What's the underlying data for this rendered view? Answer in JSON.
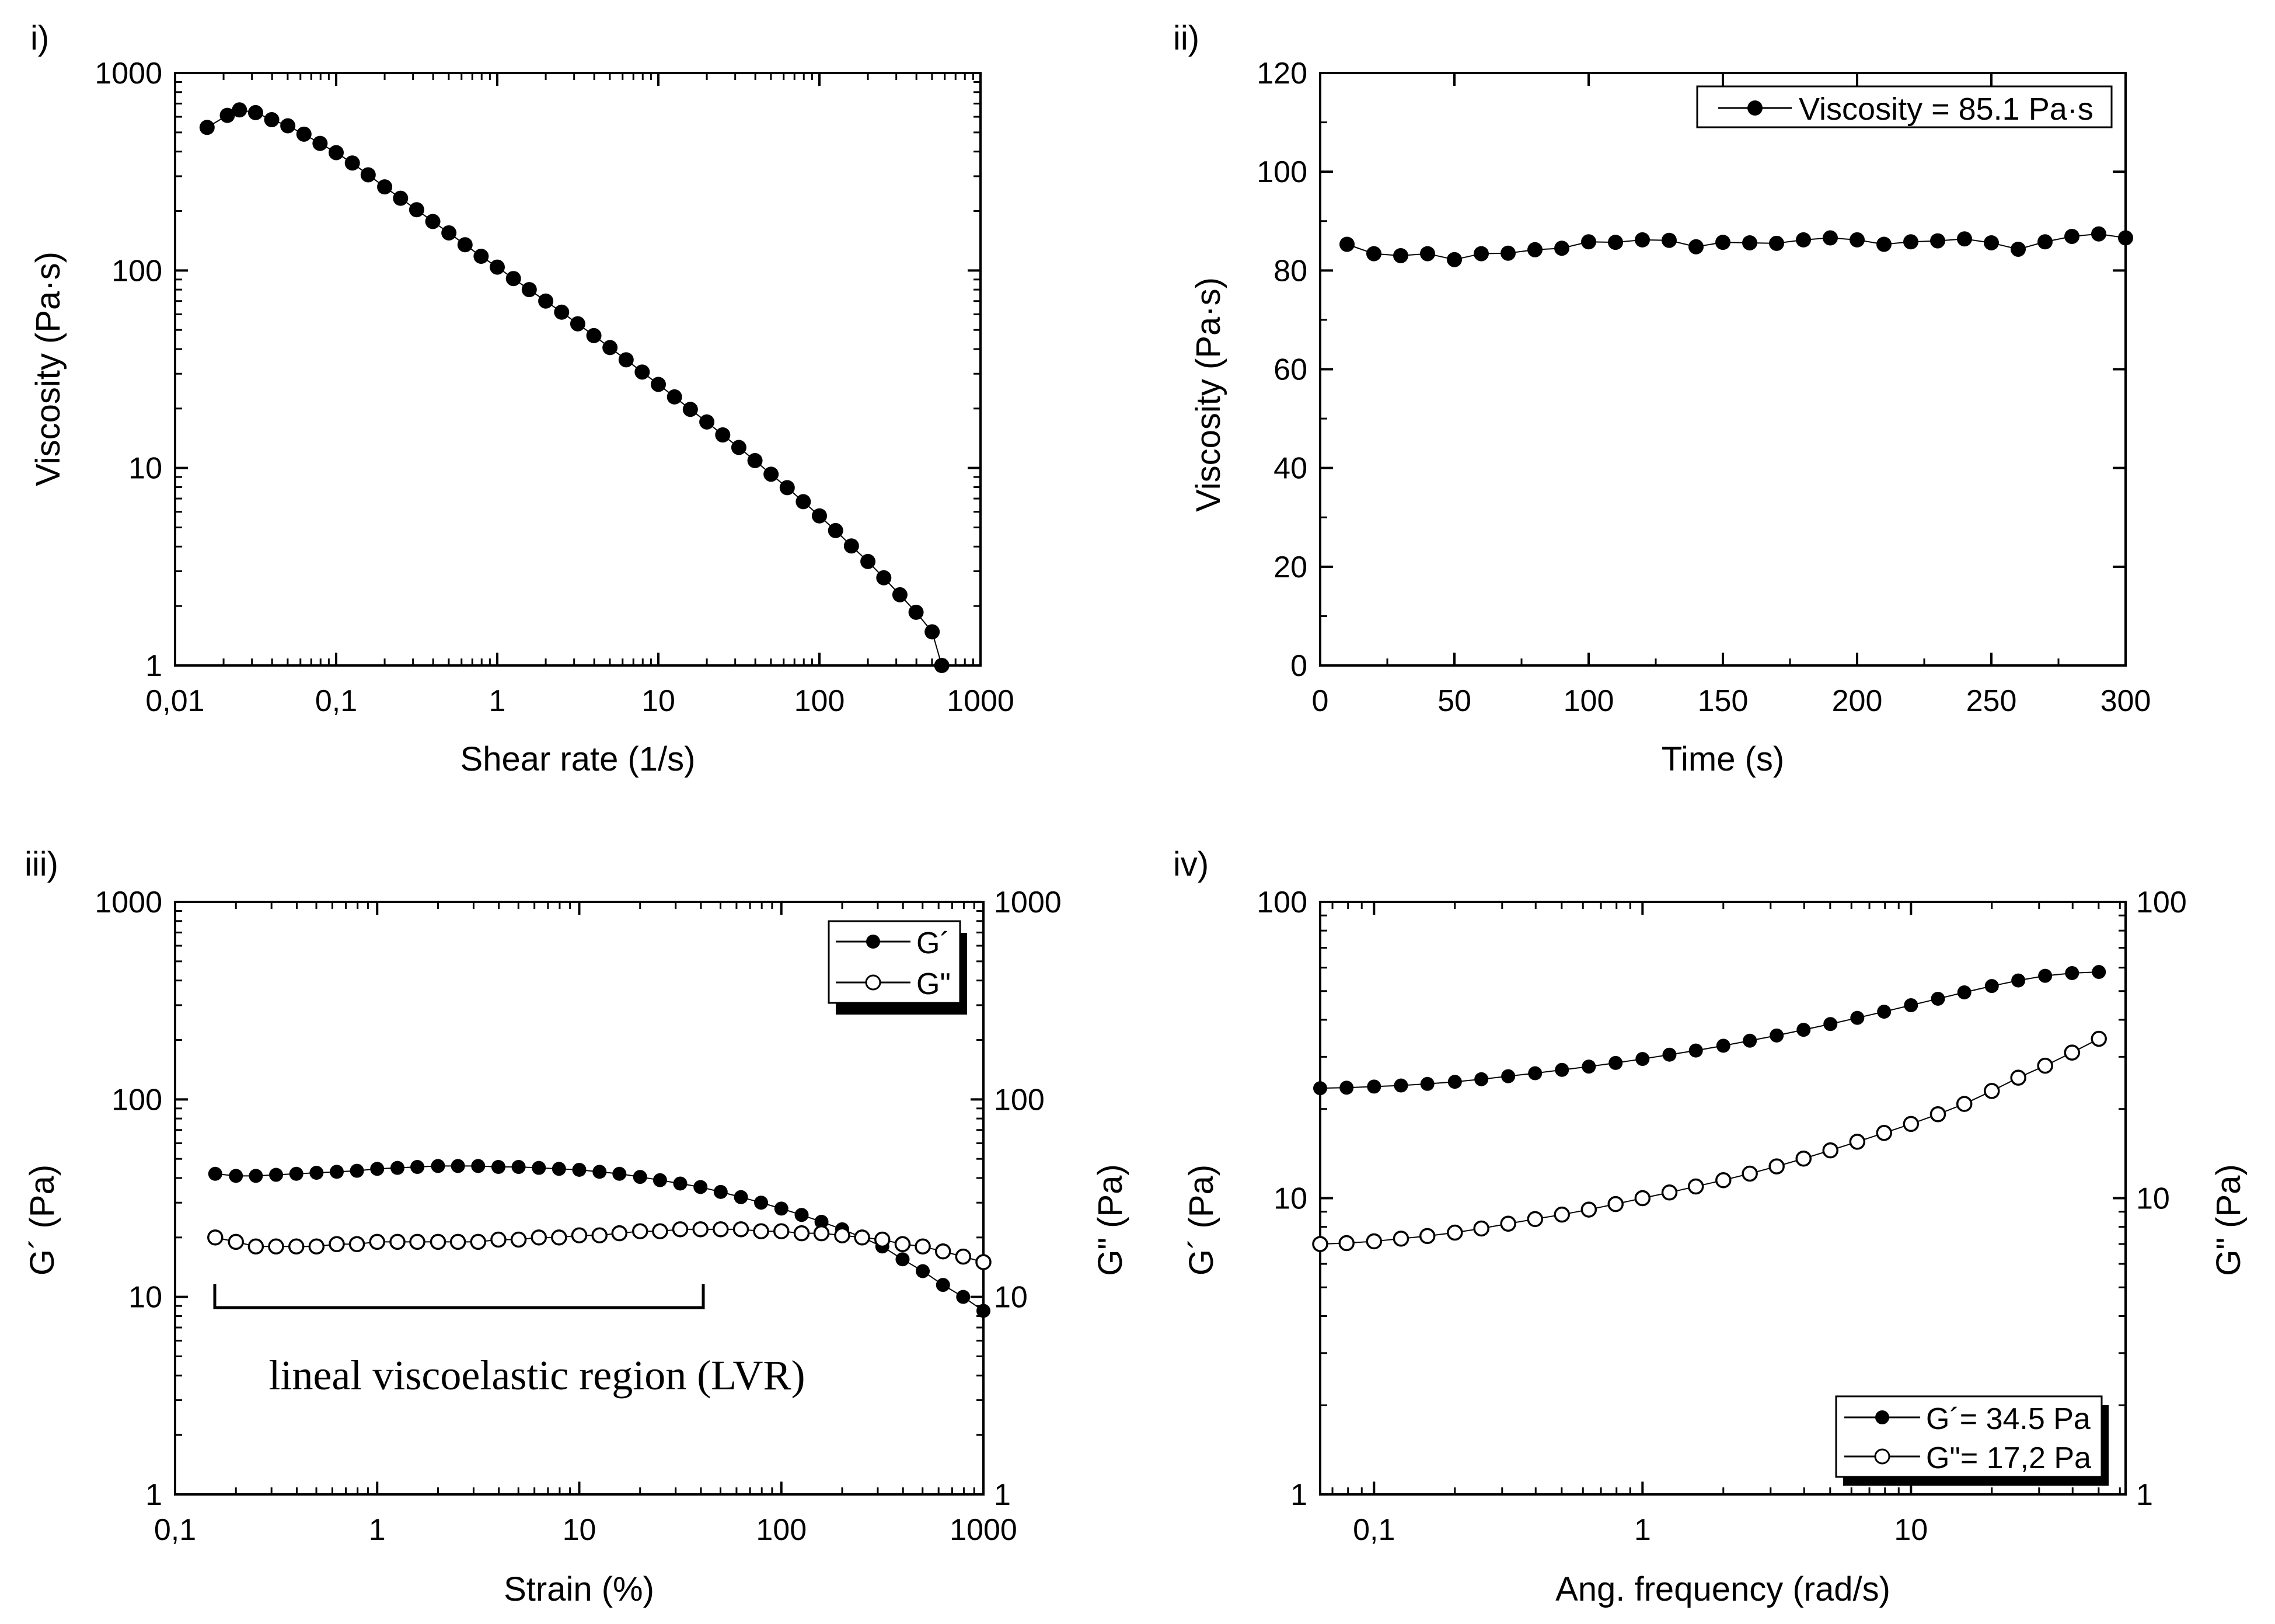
{
  "chart_data": [
    {
      "panel_label": "i)",
      "type": "scatter",
      "title": "",
      "xlabel": "Shear rate (1/s)",
      "ylabel": "Viscosity (Pa·s)",
      "xscale": "log",
      "yscale": "log",
      "xlim": [
        0.01,
        1000
      ],
      "ylim": [
        1,
        1000
      ],
      "xticks": [
        0.01,
        0.1,
        1,
        10,
        100,
        1000
      ],
      "xtick_labels": [
        "0,01",
        "0,1",
        "1",
        "10",
        "100",
        "1000"
      ],
      "yticks": [
        1,
        10,
        100,
        1000
      ],
      "ytick_labels": [
        "1",
        "10",
        "100",
        "1000"
      ],
      "series": [
        {
          "name": "Viscosity",
          "marker": "filled-circle",
          "x": [
            0.0158,
            0.0211,
            0.0251,
            0.0316,
            0.0398,
            0.0501,
            0.0631,
            0.0794,
            0.1,
            0.126,
            0.158,
            0.2,
            0.251,
            0.316,
            0.398,
            0.501,
            0.631,
            0.794,
            1,
            1.26,
            1.58,
            2,
            2.51,
            3.16,
            3.98,
            5.01,
            6.31,
            7.94,
            10,
            12.6,
            15.8,
            20,
            25.1,
            31.6,
            39.8,
            50.1,
            63.1,
            79.4,
            100,
            126,
            158,
            200,
            251,
            316,
            398,
            501,
            575
          ],
          "y": [
            530,
            610,
            650,
            630,
            580,
            540,
            490,
            440,
            395,
            350,
            305,
            265,
            232,
            203,
            177,
            155,
            135,
            118,
            104,
            91,
            80,
            70,
            61.5,
            53.7,
            46.8,
            40.7,
            35.3,
            30.6,
            26.5,
            22.9,
            19.8,
            17.1,
            14.7,
            12.7,
            10.9,
            9.3,
            7.95,
            6.75,
            5.72,
            4.82,
            4.03,
            3.36,
            2.78,
            2.28,
            1.86,
            1.48,
            1.0
          ]
        }
      ]
    },
    {
      "panel_label": "ii)",
      "type": "line",
      "title": "",
      "xlabel": "Time (s)",
      "ylabel": "Viscosity (Pa·s)",
      "xlim": [
        0,
        300
      ],
      "ylim": [
        0,
        120
      ],
      "xticks": [
        0,
        50,
        100,
        150,
        200,
        250,
        300
      ],
      "xtick_labels": [
        "0",
        "50",
        "100",
        "150",
        "200",
        "250",
        "300"
      ],
      "yticks": [
        0,
        20,
        40,
        60,
        80,
        100,
        120
      ],
      "ytick_labels": [
        "0",
        "20",
        "40",
        "60",
        "80",
        "100",
        "120"
      ],
      "legend_position": "top-right",
      "series": [
        {
          "name": "Viscosity = 85.1 Pa·s",
          "marker": "filled-circle",
          "x": [
            10,
            20,
            30,
            40,
            50,
            60,
            70,
            80,
            90,
            100,
            110,
            120,
            130,
            140,
            150,
            160,
            170,
            180,
            190,
            200,
            210,
            220,
            230,
            240,
            250,
            260,
            270,
            280,
            290,
            300
          ],
          "y": [
            85.3,
            83.4,
            83.0,
            83.4,
            82.2,
            83.4,
            83.5,
            84.2,
            84.5,
            85.8,
            85.7,
            86.2,
            86.1,
            84.8,
            85.7,
            85.6,
            85.5,
            86.2,
            86.6,
            86.2,
            85.3,
            85.8,
            86.0,
            86.4,
            85.6,
            84.3,
            85.8,
            86.9,
            87.4,
            86.6
          ]
        }
      ]
    },
    {
      "panel_label": "iii)",
      "type": "line",
      "title": "",
      "xlabel": "Strain (%)",
      "ylabel": "G´ (Pa)",
      "ylabel_right": "G\" (Pa)",
      "xscale": "log",
      "yscale": "log",
      "xlim": [
        0.1,
        1000
      ],
      "ylim": [
        1,
        1000
      ],
      "xticks": [
        0.1,
        1,
        10,
        100,
        1000
      ],
      "xtick_labels": [
        "0,1",
        "1",
        "10",
        "100",
        "1000"
      ],
      "yticks": [
        1,
        10,
        100,
        1000
      ],
      "ytick_labels": [
        "1",
        "10",
        "100",
        "1000"
      ],
      "legend_position": "top-right",
      "annotation": {
        "text": "lineal viscoelastic region (LVR)",
        "x_start": 0.16,
        "x_end": 40,
        "y": 9
      }
    },
    {
      "panel_label": "iv)",
      "type": "line",
      "title": "",
      "xlabel": "Ang. frequency (rad/s)",
      "ylabel": "G´ (Pa)",
      "ylabel_right": "G\" (Pa)",
      "xscale": "log",
      "yscale": "log",
      "xlim": [
        0.063,
        63
      ],
      "ylim": [
        1,
        100
      ],
      "xticks": [
        0.1,
        1,
        10
      ],
      "xtick_labels": [
        "0,1",
        "1",
        "10"
      ],
      "yticks": [
        1,
        10,
        100
      ],
      "ytick_labels": [
        "1",
        "10",
        "100"
      ],
      "legend_position": "bottom-right"
    }
  ],
  "panel3_series": [
    {
      "name": "G´",
      "marker": "filled-circle",
      "x": [
        0.158,
        0.2,
        0.251,
        0.316,
        0.398,
        0.501,
        0.631,
        0.794,
        1,
        1.26,
        1.58,
        2,
        2.51,
        3.16,
        3.98,
        5.01,
        6.31,
        7.94,
        10,
        12.6,
        15.8,
        20,
        25.1,
        31.6,
        39.8,
        50.1,
        63.1,
        79.4,
        100,
        126,
        158,
        200,
        251,
        316,
        398,
        501,
        631,
        794,
        1000
      ],
      "y": [
        42,
        41,
        41,
        41.5,
        42,
        42.5,
        43,
        43.5,
        44.5,
        45,
        45.5,
        46,
        46,
        46,
        45.5,
        45.5,
        45,
        44.5,
        44,
        43,
        42,
        40.5,
        39,
        37.5,
        36,
        34,
        32,
        30,
        28,
        26,
        24,
        22,
        20,
        18,
        15.5,
        13.5,
        11.5,
        10,
        8.5
      ]
    },
    {
      "name": "G\"",
      "marker": "open-circle",
      "x": [
        0.158,
        0.2,
        0.251,
        0.316,
        0.398,
        0.501,
        0.631,
        0.794,
        1,
        1.26,
        1.58,
        2,
        2.51,
        3.16,
        3.98,
        5.01,
        6.31,
        7.94,
        10,
        12.6,
        15.8,
        20,
        25.1,
        31.6,
        39.8,
        50.1,
        63.1,
        79.4,
        100,
        126,
        158,
        200,
        251,
        316,
        398,
        501,
        631,
        794,
        1000
      ],
      "y": [
        20,
        19,
        18,
        18,
        18,
        18,
        18.5,
        18.5,
        19,
        19,
        19,
        19,
        19,
        19,
        19.5,
        19.5,
        20,
        20,
        20.5,
        20.5,
        21,
        21.5,
        21.5,
        22,
        22,
        22,
        22,
        21.5,
        21.5,
        21,
        21,
        20.5,
        20,
        19.5,
        18.5,
        18,
        17,
        16,
        15
      ]
    }
  ],
  "panel3_legend": [
    "G´",
    "G\""
  ],
  "panel4_series": [
    {
      "name": "G´= 34.5 Pa",
      "marker": "filled-circle",
      "x": [
        0.063,
        0.079,
        0.1,
        0.126,
        0.158,
        0.2,
        0.251,
        0.316,
        0.398,
        0.501,
        0.631,
        0.794,
        1,
        1.26,
        1.58,
        2,
        2.51,
        3.16,
        3.98,
        5.01,
        6.31,
        7.94,
        10,
        12.6,
        15.8,
        20,
        25.1,
        31.6,
        39.8,
        50.1
      ],
      "y": [
        23.5,
        23.6,
        23.8,
        24,
        24.3,
        24.7,
        25.2,
        25.8,
        26.4,
        27.1,
        27.8,
        28.6,
        29.5,
        30.5,
        31.5,
        32.7,
        34,
        35.4,
        37,
        38.7,
        40.6,
        42.6,
        44.8,
        47.1,
        49.5,
        52,
        54.3,
        56.3,
        57.5,
        58
      ]
    },
    {
      "name": "G\"= 17,2 Pa",
      "marker": "open-circle",
      "x": [
        0.063,
        0.079,
        0.1,
        0.126,
        0.158,
        0.2,
        0.251,
        0.316,
        0.398,
        0.501,
        0.631,
        0.794,
        1,
        1.26,
        1.58,
        2,
        2.51,
        3.16,
        3.98,
        5.01,
        6.31,
        7.94,
        10,
        12.6,
        15.8,
        20,
        25.1,
        31.6,
        39.8,
        50.1
      ],
      "y": [
        7,
        7.05,
        7.15,
        7.3,
        7.45,
        7.65,
        7.9,
        8.2,
        8.5,
        8.8,
        9.15,
        9.55,
        10,
        10.45,
        10.95,
        11.5,
        12.1,
        12.8,
        13.6,
        14.5,
        15.5,
        16.6,
        17.8,
        19.2,
        20.8,
        23,
        25.5,
        28,
        31,
        34.5
      ]
    }
  ],
  "panel4_legend": [
    "G´= 34.5 Pa",
    "G\"= 17,2 Pa"
  ]
}
